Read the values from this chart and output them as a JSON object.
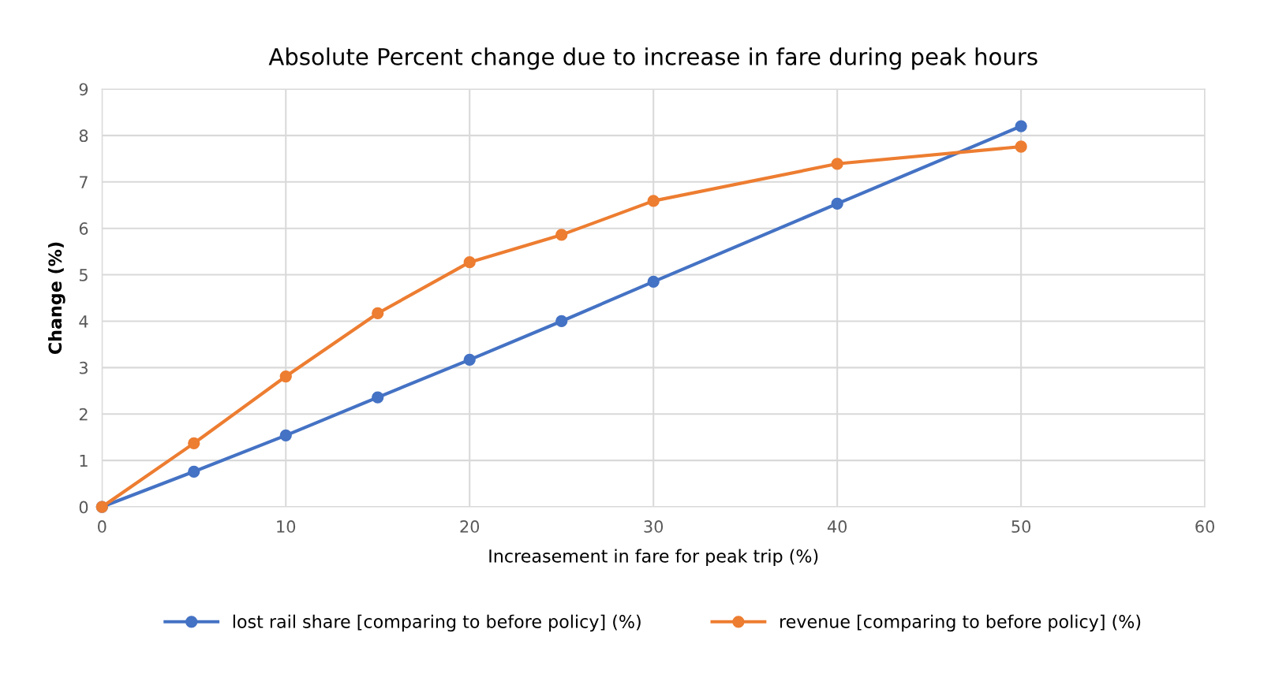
{
  "chart_data": {
    "type": "line",
    "title": "Absolute Percent change due to increase in fare during peak hours",
    "xlabel": "Increasement in fare for peak trip (%)",
    "ylabel": "Change (%)",
    "x": [
      0,
      5,
      10,
      15,
      20,
      25,
      30,
      40,
      50
    ],
    "series": [
      {
        "name": "lost rail share [comparing to before policy] (%)",
        "color": "#4472c4",
        "values": [
          0,
          0.76,
          1.54,
          2.36,
          3.17,
          4.0,
          4.85,
          6.53,
          8.2
        ]
      },
      {
        "name": "revenue [comparing to before policy] (%)",
        "color": "#ed7d31",
        "values": [
          0,
          1.37,
          2.81,
          4.17,
          5.27,
          5.86,
          6.59,
          7.39,
          7.76
        ]
      }
    ],
    "xlim": [
      0,
      60
    ],
    "xticks": [
      0,
      10,
      20,
      30,
      40,
      50,
      60
    ],
    "ylim": [
      0,
      9
    ],
    "yticks": [
      0,
      1,
      2,
      3,
      4,
      5,
      6,
      7,
      8,
      9
    ],
    "grid": true,
    "legend": "bottom",
    "marker": "circle",
    "line_style": "solid"
  }
}
